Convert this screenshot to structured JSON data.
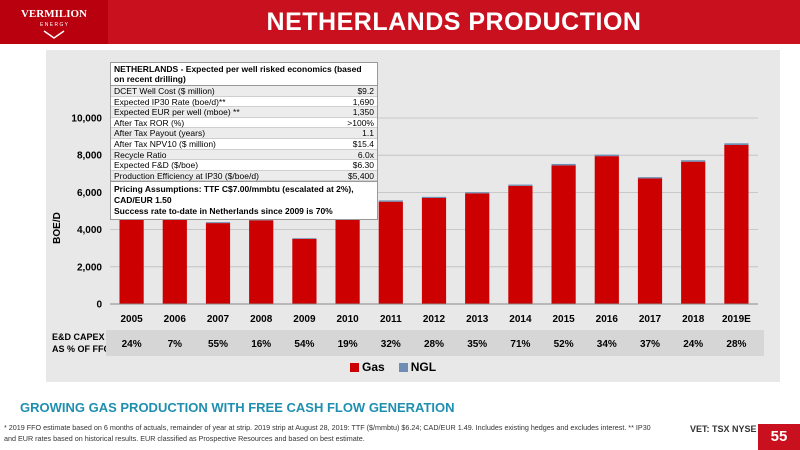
{
  "header": {
    "logo_line1": "VERMILION",
    "logo_line2": "E N E R G Y",
    "title": "NETHERLANDS PRODUCTION"
  },
  "economics_table": {
    "title": "NETHERLANDS - Expected per well risked economics (based on recent drilling)",
    "rows": [
      {
        "label": "DCET Well Cost ($ million)",
        "value": "$9.2"
      },
      {
        "label": "Expected IP30 Rate (boe/d)**",
        "value": "1,690"
      },
      {
        "label": "Expected EUR per well (mboe) **",
        "value": "1,350"
      },
      {
        "label": "After Tax ROR (%)",
        "value": ">100%"
      },
      {
        "label": "After Tax Payout (years)",
        "value": "1.1"
      },
      {
        "label": "After Tax NPV10 ($ million)",
        "value": "$15.4"
      },
      {
        "label": "Recycle Ratio",
        "value": "6.0x"
      },
      {
        "label": "Expected F&D ($/boe)",
        "value": "$6.30"
      },
      {
        "label": "Production Efficiency at IP30 ($/boe/d)",
        "value": "$5,400"
      }
    ],
    "assumption_1": "Pricing Assumptions: TTF C$7.00/mmbtu (escalated at 2%), CAD/EUR 1.50",
    "assumption_2": "Success rate to-date in Netherlands since 2009 is 70%"
  },
  "chart_data": {
    "type": "bar",
    "stacked": true,
    "ylabel": "BOE/D",
    "ylim": [
      0,
      10000
    ],
    "yticks": [
      0,
      2000,
      4000,
      6000,
      8000,
      10000
    ],
    "ytick_labels": [
      "0",
      "2,000",
      "4,000",
      "6,000",
      "8,000",
      "10,000"
    ],
    "categories": [
      "2005",
      "2006",
      "2007",
      "2008",
      "2009",
      "2010",
      "2011",
      "2012",
      "2013",
      "2014",
      "2015",
      "2016",
      "2017",
      "2018",
      "2019E"
    ],
    "series": [
      {
        "name": "Gas",
        "color": "#cc0000",
        "values": [
          4750,
          4850,
          4350,
          4500,
          3500,
          4700,
          5500,
          5700,
          5950,
          6350,
          7450,
          7950,
          6750,
          7650,
          8550
        ]
      },
      {
        "name": "NGL",
        "color": "#6f8db5",
        "values": [
          60,
          60,
          50,
          50,
          40,
          60,
          70,
          60,
          60,
          70,
          80,
          80,
          70,
          80,
          90
        ]
      }
    ],
    "grid": true,
    "legend_position": "bottom"
  },
  "capex": {
    "label_line1": "E&D CAPEX",
    "label_line2": "AS % OF FFO*",
    "values": [
      "24%",
      "7%",
      "55%",
      "16%",
      "54%",
      "19%",
      "32%",
      "28%",
      "35%",
      "71%",
      "52%",
      "34%",
      "37%",
      "24%",
      "28%"
    ]
  },
  "subtitle": "GROWING GAS PRODUCTION WITH FREE CASH FLOW GENERATION",
  "footnote_line1": "* 2019 FFO estimate based on 6 months of actuals, remainder of year at strip. 2019 strip at August 28, 2019: TTF ($/mmbtu) $6.24; CAD/EUR 1.49.  Includes existing hedges and excludes interest. ** IP30",
  "footnote_line2": "and EUR rates based on historical results. EUR classified as Prospective Resources and based on best estimate.",
  "exchanges": "VET: TSX  NYSE",
  "page_number": "55",
  "colors": {
    "brand_red": "#c8101e",
    "subtitle_blue": "#1f8fb0"
  }
}
